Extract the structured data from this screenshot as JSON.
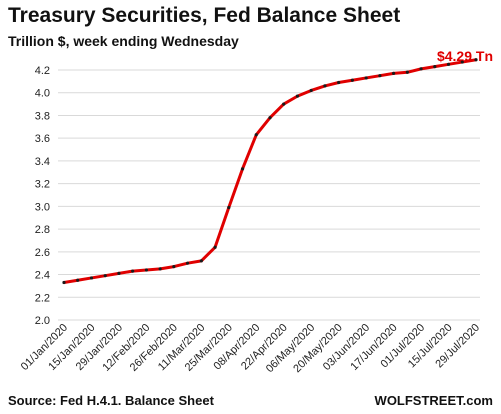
{
  "header": {
    "title": "Treasury Securities, Fed Balance Sheet",
    "subtitle": "Trillion $, week ending Wednesday",
    "end_label": "$4.29 Tn"
  },
  "footer": {
    "source": "Source: Fed H.4.1. Balance Sheet",
    "brand": "WOLFSTREET.com"
  },
  "chart_data": {
    "type": "line",
    "title": "Treasury Securities, Fed Balance Sheet",
    "subtitle": "Trillion $, week ending Wednesday",
    "xlabel": "",
    "ylabel": "",
    "ylim": [
      2.0,
      4.2
    ],
    "yticks": [
      2.0,
      2.2,
      2.4,
      2.6,
      2.8,
      3.0,
      3.2,
      3.4,
      3.6,
      3.8,
      4.0,
      4.2
    ],
    "ytick_labels": [
      "2.0",
      "2.2",
      "2.4",
      "2.6",
      "2.8",
      "3.0",
      "3.2",
      "3.4",
      "3.6",
      "3.8",
      "4.0",
      "4.2"
    ],
    "xtick_labels": [
      "01/Jan/2020",
      "15/Jan/2020",
      "29/Jan/2020",
      "12/Feb/2020",
      "26/Feb/2020",
      "11/Mar/2020",
      "25/Mar/2020",
      "08/Apr/2020",
      "22/Apr/2020",
      "06/May/2020",
      "20/May/2020",
      "03/Jun/2020",
      "17/Jun/2020",
      "01/Jul/2020",
      "15/Jul/2020",
      "29/Jul/2020"
    ],
    "grid": true,
    "line_color": "#e00000",
    "marker_color": "#1a1a1a",
    "series": [
      {
        "x": [
          "01/Jan/2020",
          "08/Jan/2020",
          "15/Jan/2020",
          "22/Jan/2020",
          "29/Jan/2020",
          "05/Feb/2020",
          "12/Feb/2020",
          "19/Feb/2020",
          "26/Feb/2020",
          "04/Mar/2020",
          "11/Mar/2020",
          "18/Mar/2020",
          "25/Mar/2020",
          "01/Apr/2020",
          "08/Apr/2020",
          "15/Apr/2020",
          "22/Apr/2020",
          "29/Apr/2020",
          "06/May/2020",
          "13/May/2020",
          "20/May/2020",
          "27/May/2020",
          "03/Jun/2020",
          "10/Jun/2020",
          "17/Jun/2020",
          "24/Jun/2020",
          "01/Jul/2020",
          "08/Jul/2020",
          "15/Jul/2020",
          "22/Jul/2020",
          "29/Jul/2020"
        ],
        "values": [
          2.33,
          2.35,
          2.37,
          2.39,
          2.41,
          2.43,
          2.44,
          2.45,
          2.47,
          2.5,
          2.52,
          2.64,
          2.99,
          3.33,
          3.63,
          3.78,
          3.9,
          3.97,
          4.02,
          4.06,
          4.09,
          4.11,
          4.13,
          4.15,
          4.17,
          4.18,
          4.21,
          4.23,
          4.25,
          4.27,
          4.29
        ]
      }
    ]
  }
}
